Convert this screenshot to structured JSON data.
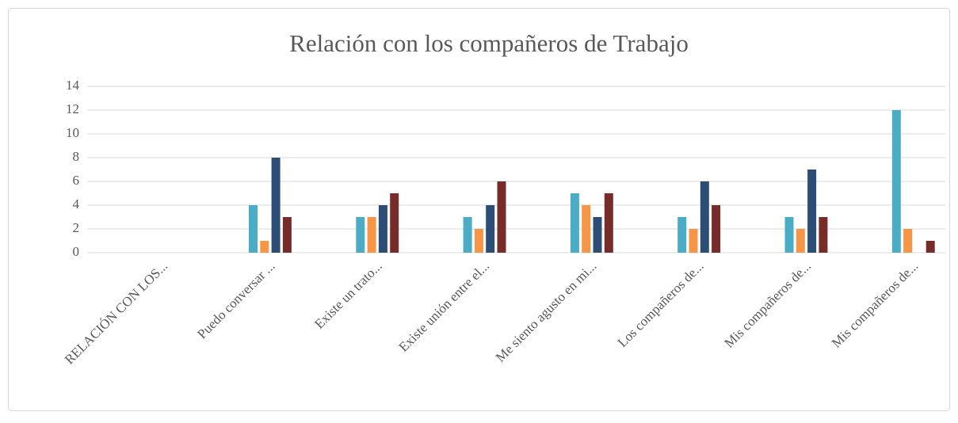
{
  "chart_data": {
    "type": "bar",
    "title": "Relación con los compañeros de Trabajo",
    "categories": [
      "RELACIÓN CON LOS...",
      "Puedo conversar ...",
      "Existe un trato...",
      "Existe unión entre el...",
      "Me siento agusto en mi...",
      "Los compañeros de...",
      "Mis compañeros de...",
      "Mis compañeros de..."
    ],
    "series": [
      {
        "color": "#4bacc6",
        "values": [
          null,
          4,
          3,
          3,
          5,
          3,
          3,
          12
        ]
      },
      {
        "color": "#f79646",
        "values": [
          null,
          1,
          3,
          2,
          4,
          2,
          2,
          2
        ]
      },
      {
        "color": "#2c4d75",
        "values": [
          null,
          8,
          4,
          4,
          3,
          6,
          7,
          null
        ]
      },
      {
        "color": "#772c2a",
        "values": [
          null,
          3,
          5,
          6,
          5,
          4,
          3,
          1
        ]
      }
    ],
    "ylim": [
      0,
      14
    ],
    "yticks": [
      0,
      2,
      4,
      6,
      8,
      10,
      12,
      14
    ],
    "grid": true
  }
}
